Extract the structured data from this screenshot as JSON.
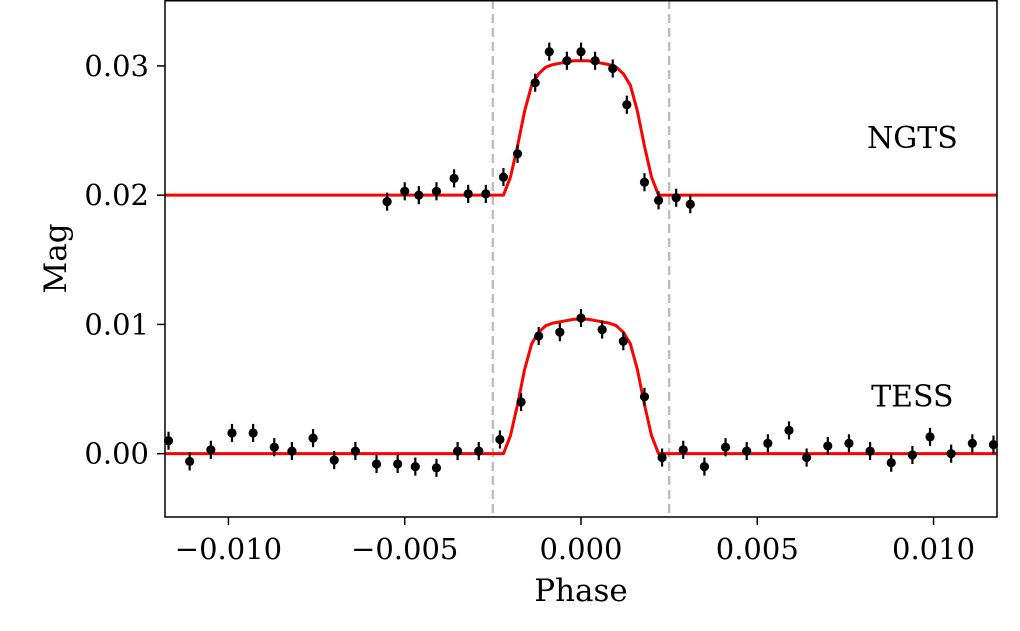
{
  "chart_data": {
    "type": "scatter",
    "title": "",
    "xlabel": "Phase",
    "ylabel": "Mag",
    "xlim": [
      -0.0118,
      0.0118
    ],
    "ylim": [
      0.0351,
      -0.0049
    ],
    "y_inverted": true,
    "grid": false,
    "legend": "none",
    "xticks": [
      -0.01,
      -0.005,
      0.0,
      0.005,
      0.01
    ],
    "xtick_labels": [
      "−0.010",
      "−0.005",
      "0.000",
      "0.005",
      "0.010"
    ],
    "yticks": [
      0.0,
      0.01,
      0.02,
      0.03
    ],
    "ytick_labels": [
      "0.00",
      "0.01",
      "0.02",
      "0.03"
    ],
    "vertical_lines": {
      "x": [
        -0.0025,
        0.0025
      ],
      "style": "dashed",
      "color": "#bdbdbd"
    },
    "colors": {
      "points": "#000000",
      "model": "#ff0000",
      "guides": "#bdbdbd"
    },
    "annotations": [
      {
        "text": "TESS",
        "x": 0.0094,
        "y": 0.0045
      },
      {
        "text": "NGTS",
        "x": 0.0094,
        "y": 0.0245
      }
    ],
    "series": [
      {
        "label": "TESS",
        "kind": "errorbar",
        "x": [
          -0.0117,
          -0.0111,
          -0.0105,
          -0.0099,
          -0.0093,
          -0.0087,
          -0.0082,
          -0.0076,
          -0.007,
          -0.0064,
          -0.0058,
          -0.0052,
          -0.0047,
          -0.0041,
          -0.0035,
          -0.0029,
          -0.0023,
          -0.0017,
          -0.0012,
          -0.0006,
          0.0,
          0.0006,
          0.0012,
          0.0018,
          0.0023,
          0.0029,
          0.0035,
          0.0041,
          0.0047,
          0.0053,
          0.0059,
          0.0064,
          0.007,
          0.0076,
          0.0082,
          0.0088,
          0.0094,
          0.0099,
          0.0105,
          0.0111,
          0.0117
        ],
        "y": [
          0.001,
          -0.0006,
          0.0003,
          0.0016,
          0.0016,
          0.0005,
          0.0002,
          0.0012,
          -0.0005,
          0.0002,
          -0.0008,
          -0.0008,
          -0.001,
          -0.0011,
          0.0002,
          0.0002,
          0.0011,
          0.004,
          0.0091,
          0.0094,
          0.0105,
          0.0096,
          0.0087,
          0.0044,
          -0.0003,
          0.0003,
          -0.001,
          0.0005,
          0.0002,
          0.0008,
          0.0018,
          -0.0003,
          0.0006,
          0.0008,
          0.0002,
          -0.0007,
          -0.0001,
          0.0013,
          0.0,
          0.0008,
          0.0007
        ],
        "yerr": 0.0007
      },
      {
        "label": "NGTS",
        "kind": "errorbar",
        "x": [
          -0.0055,
          -0.005,
          -0.0046,
          -0.0041,
          -0.0036,
          -0.0032,
          -0.0027,
          -0.0022,
          -0.0018,
          -0.0013,
          -0.0009,
          -0.0004,
          0.0,
          0.0004,
          0.0009,
          0.0013,
          0.0018,
          0.0022,
          0.0027,
          0.0031
        ],
        "y": [
          0.0195,
          0.0203,
          0.02,
          0.0203,
          0.0213,
          0.0201,
          0.0201,
          0.0214,
          0.0232,
          0.0287,
          0.0311,
          0.0304,
          0.0311,
          0.0304,
          0.0298,
          0.027,
          0.021,
          0.0196,
          0.0198,
          0.0193
        ],
        "yerr": 0.0007
      },
      {
        "label": "TESS model",
        "kind": "line",
        "x": [
          -0.0118,
          -0.0022,
          -0.002,
          -0.0018,
          -0.0016,
          -0.0014,
          -0.0012,
          -0.001,
          -0.0008,
          -0.0006,
          -0.0004,
          -0.0002,
          0.0,
          0.0002,
          0.0004,
          0.0006,
          0.0008,
          0.001,
          0.0012,
          0.0014,
          0.0016,
          0.0018,
          0.002,
          0.0022,
          0.0118
        ],
        "y": [
          0.0,
          0.0,
          0.0014,
          0.0038,
          0.0065,
          0.0085,
          0.0094,
          0.0099,
          0.0101,
          0.0102,
          0.0103,
          0.0104,
          0.0104,
          0.0104,
          0.0103,
          0.0102,
          0.0101,
          0.0099,
          0.0094,
          0.0085,
          0.0065,
          0.0038,
          0.0014,
          0.0,
          0.0
        ]
      },
      {
        "label": "NGTS model",
        "kind": "line",
        "x": [
          -0.0118,
          -0.0022,
          -0.002,
          -0.0018,
          -0.0016,
          -0.0014,
          -0.0012,
          -0.001,
          -0.0008,
          -0.0006,
          -0.0004,
          -0.0002,
          0.0,
          0.0002,
          0.0004,
          0.0006,
          0.0008,
          0.001,
          0.0012,
          0.0014,
          0.0016,
          0.0018,
          0.002,
          0.0022,
          0.0118
        ],
        "y": [
          0.02,
          0.02,
          0.0214,
          0.0238,
          0.0265,
          0.0285,
          0.0294,
          0.0299,
          0.0301,
          0.0302,
          0.0303,
          0.0304,
          0.0304,
          0.0304,
          0.0303,
          0.0302,
          0.0301,
          0.0299,
          0.0294,
          0.0285,
          0.0265,
          0.0238,
          0.0214,
          0.02,
          0.02
        ]
      }
    ]
  }
}
